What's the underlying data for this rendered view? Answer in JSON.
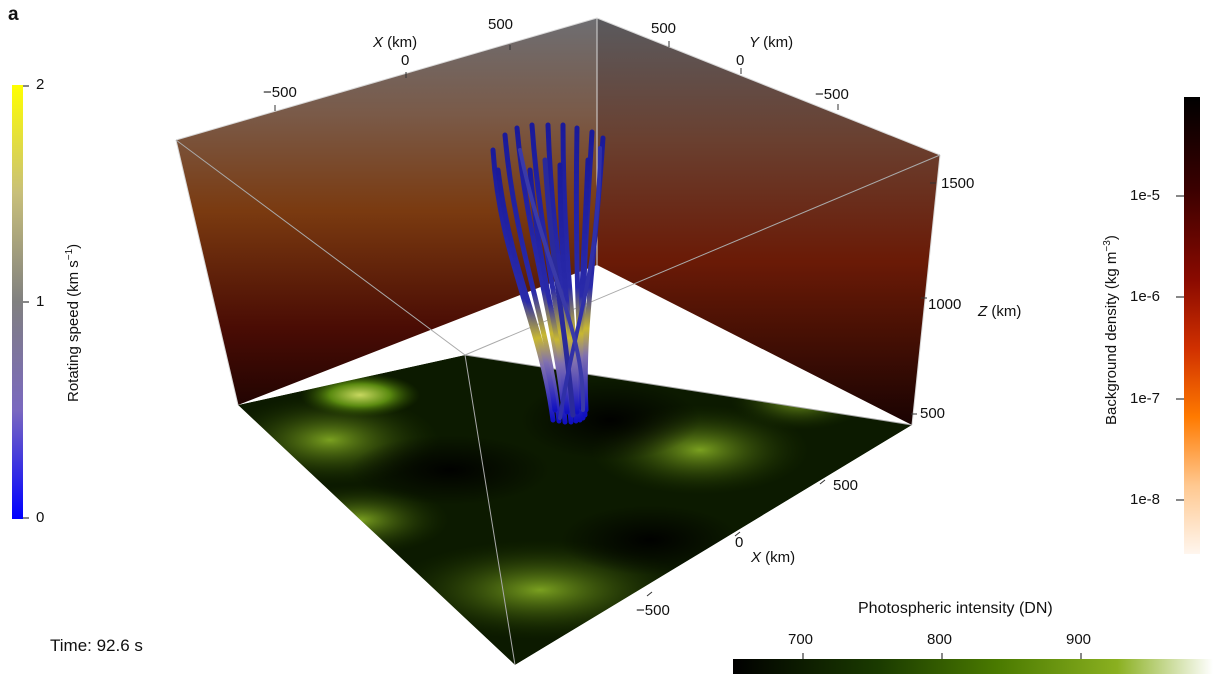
{
  "panel_label": "a",
  "time_label": "Time: 92.6 s",
  "rotating_speed_bar": {
    "title_main": "Rotating speed (km s",
    "title_sup": "−1",
    "title_end": ")",
    "ticks": [
      "2",
      "1",
      "0"
    ],
    "colors": [
      "#ffff00",
      "#c8bf7a",
      "#808080",
      "#7a68c0",
      "#0000ff"
    ]
  },
  "density_bar": {
    "title_main": "Background density (kg m",
    "title_sup": "−3",
    "title_end": ")",
    "ticks": [
      "1e-5",
      "1e-6",
      "1e-7",
      "1e-8"
    ],
    "colors": [
      "#000000",
      "#3a0000",
      "#8a0a00",
      "#d03000",
      "#ff7a00",
      "#ffc890",
      "#fff6ee"
    ]
  },
  "intensity_bar": {
    "title": "Photospheric intensity (DN)",
    "ticks": [
      "700",
      "800",
      "900"
    ],
    "colors": [
      "#000000",
      "#1a3a00",
      "#4a7a00",
      "#8ab020",
      "#ffffff"
    ]
  },
  "axes": {
    "top_x": {
      "var": "X",
      "unit": " (km)",
      "ticks": [
        "500",
        "0",
        "−500"
      ]
    },
    "top_y": {
      "var": "Y",
      "unit": " (km)",
      "ticks": [
        "500",
        "0",
        "−500"
      ]
    },
    "z": {
      "var": "Z",
      "unit": " (km)",
      "ticks": [
        "1500",
        "1000",
        "500"
      ]
    },
    "bottom_x": {
      "var": "X",
      "unit": " (km)",
      "ticks": [
        "500",
        "0",
        "−500"
      ]
    }
  }
}
